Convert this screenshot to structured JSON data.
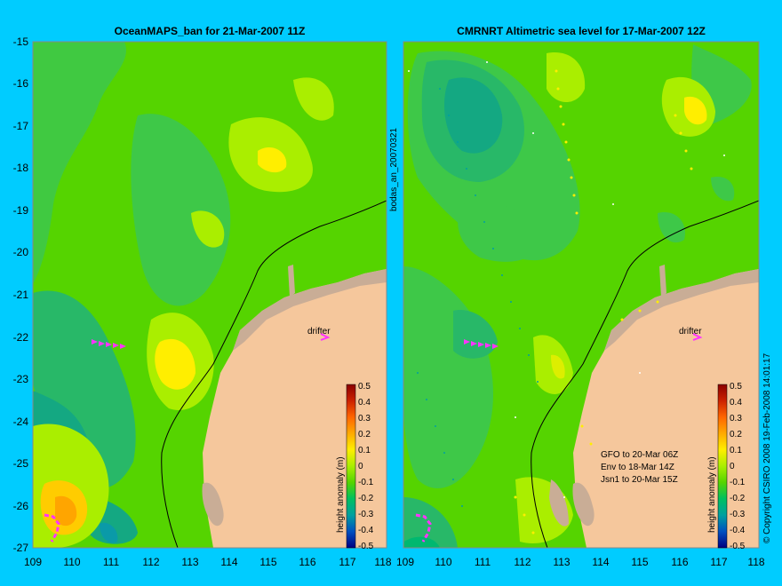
{
  "colors": {
    "background": "#00ccff",
    "land": "#f5c79c",
    "land_shadow": "#c9ad96",
    "ocean_base": "#55d400",
    "drifter": "#ff33ff"
  },
  "left_panel": {
    "title": "OceanMAPS_ban for 21-Mar-2007 11Z",
    "side_label": "bodas_an_20070321",
    "drifter_label": "drifter"
  },
  "right_panel": {
    "title": "CMRNRT Altimetric sea level  for 17-Mar-2007 12Z",
    "drifter_label": "drifter",
    "info_lines": [
      "GFO to 20-Mar 06Z",
      "Env to 18-Mar 14Z",
      "Jsn1 to 20-Mar 15Z"
    ]
  },
  "axes": {
    "longitude_ticks": [
      "109",
      "110",
      "111",
      "112",
      "113",
      "114",
      "115",
      "116",
      "117",
      "118"
    ],
    "latitude_ticks": [
      "-15",
      "-16",
      "-17",
      "-18",
      "-19",
      "-20",
      "-21",
      "-22",
      "-23",
      "-24",
      "-25",
      "-26",
      "-27"
    ]
  },
  "colorbar": {
    "label": "height anomaly (m)",
    "ticks": [
      "0.5",
      "0.4",
      "0.3",
      "0.2",
      "0.1",
      "0",
      "-0.1",
      "-0.2",
      "-0.3",
      "-0.4",
      "-0.5"
    ],
    "colors": [
      "#8b0000",
      "#cc2200",
      "#ff6600",
      "#ffaa00",
      "#ffee00",
      "#aaee00",
      "#55d400",
      "#00c060",
      "#00a0a0",
      "#0050c0",
      "#000080"
    ]
  },
  "copyright": "© Copyright CSIRO 2008   19-Feb-2008 14:01:17"
}
